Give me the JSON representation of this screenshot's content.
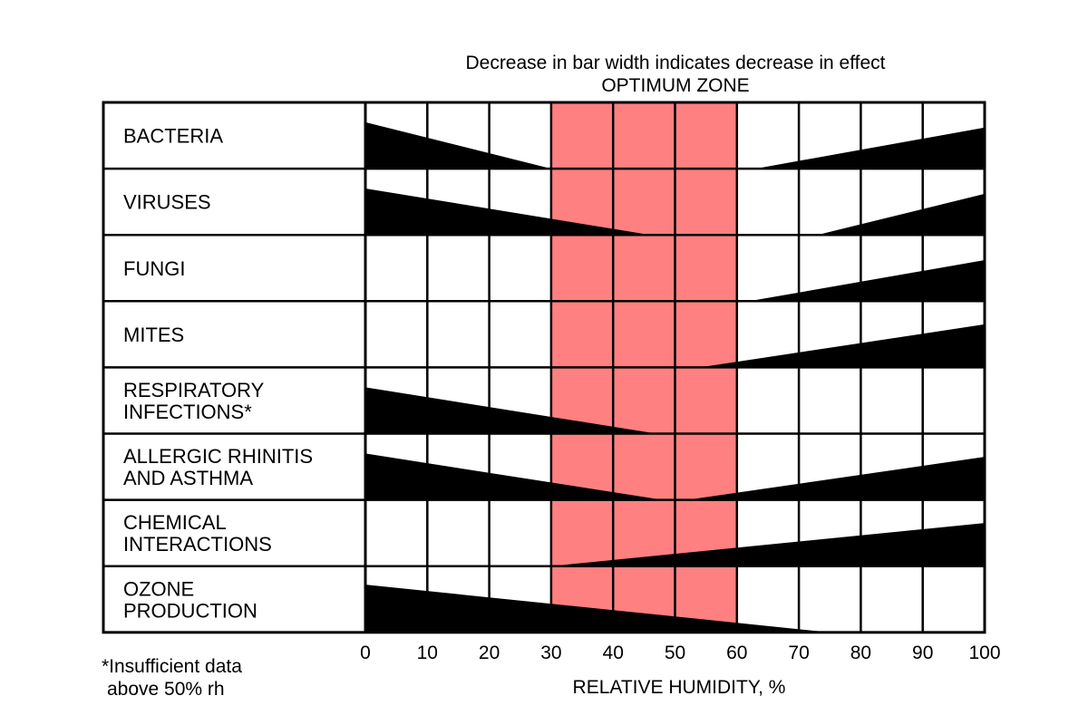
{
  "chart_data": {
    "type": "bar",
    "title_lines": [
      "Decrease in bar width indicates decrease in effect",
      "OPTIMUM ZONE"
    ],
    "xlabel": "RELATIVE HUMIDITY, %",
    "xlim": [
      0,
      100
    ],
    "xticks": [
      "0",
      "10",
      "20",
      "30",
      "40",
      "50",
      "60",
      "70",
      "80",
      "90",
      "100"
    ],
    "grid": true,
    "optimum_zone": {
      "x_range": [
        30,
        60
      ],
      "color": "#ff8080"
    },
    "bar_color": "#000000",
    "footnote_lines": [
      "*Insufficient data",
      "above 50% rh"
    ],
    "rows": [
      {
        "label_lines": [
          "BACTERIA"
        ],
        "low_wedge": {
          "x_start": 0,
          "x_end": 30,
          "max_width_fraction": 0.7
        },
        "high_wedge": {
          "x_start": 63,
          "x_end": 100,
          "max_width_fraction": 0.62
        }
      },
      {
        "label_lines": [
          "VIRUSES"
        ],
        "low_wedge": {
          "x_start": 0,
          "x_end": 46,
          "max_width_fraction": 0.7
        },
        "high_wedge": {
          "x_start": 73,
          "x_end": 100,
          "max_width_fraction": 0.62
        }
      },
      {
        "label_lines": [
          "FUNGI"
        ],
        "low_wedge": null,
        "high_wedge": {
          "x_start": 62,
          "x_end": 100,
          "max_width_fraction": 0.62
        }
      },
      {
        "label_lines": [
          "MITES"
        ],
        "low_wedge": null,
        "high_wedge": {
          "x_start": 54,
          "x_end": 100,
          "max_width_fraction": 0.65
        }
      },
      {
        "label_lines": [
          "RESPIRATORY",
          "INFECTIONS*"
        ],
        "low_wedge": {
          "x_start": 0,
          "x_end": 47,
          "max_width_fraction": 0.7
        },
        "high_wedge": null
      },
      {
        "label_lines": [
          "ALLERGIC RHINITIS",
          "AND ASTHMA"
        ],
        "low_wedge": {
          "x_start": 0,
          "x_end": 48,
          "max_width_fraction": 0.7
        },
        "high_wedge": {
          "x_start": 52,
          "x_end": 100,
          "max_width_fraction": 0.65
        }
      },
      {
        "label_lines": [
          "CHEMICAL",
          "INTERACTIONS"
        ],
        "low_wedge": null,
        "high_wedge": {
          "x_start": 30,
          "x_end": 100,
          "max_width_fraction": 0.65
        }
      },
      {
        "label_lines": [
          "OZONE",
          "PRODUCTION"
        ],
        "low_wedge": {
          "x_start": 0,
          "x_end": 75,
          "max_width_fraction": 0.72
        },
        "high_wedge": null
      }
    ]
  }
}
